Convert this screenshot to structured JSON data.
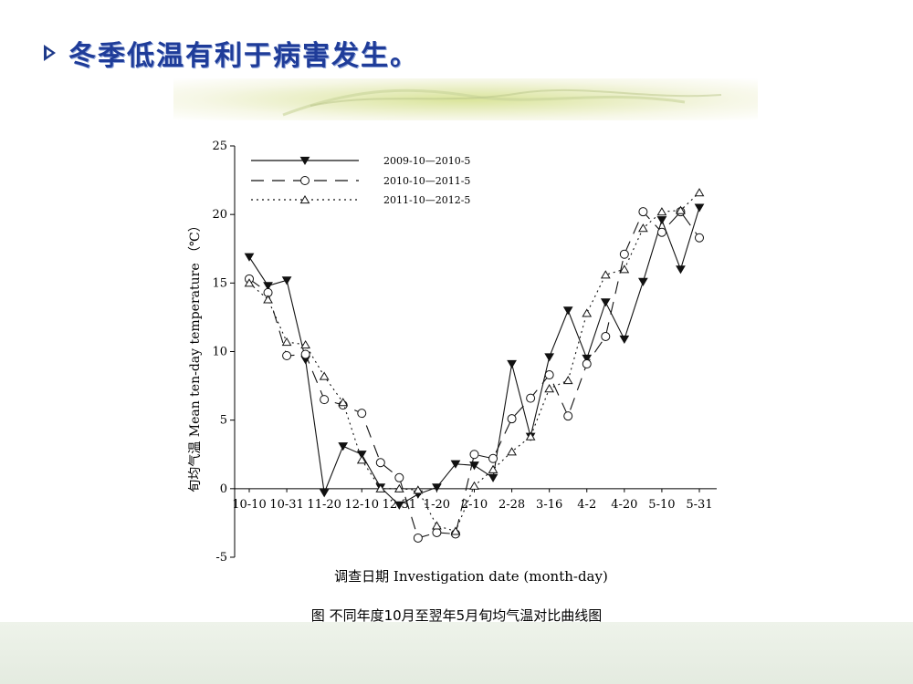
{
  "slide": {
    "title": "冬季低温有利于病害发生。",
    "caption": "图  不同年度10月至翌年5月旬均气温对比曲线图"
  },
  "colors": {
    "title": "#1f3c99",
    "series": "#111111"
  },
  "chart_data": {
    "type": "line",
    "title": "",
    "xlabel": "调查日期 Investigation date (month-day)",
    "ylabel": "旬均气温 Mean ten-day temperature （℃）",
    "ylim": [
      -5,
      25
    ],
    "y_ticks": [
      "-5",
      "0",
      "5",
      "10",
      "15",
      "20",
      "25"
    ],
    "x_tick_labels": [
      "10-10",
      "10-31",
      "11-20",
      "12-10",
      "12-31",
      "1-20",
      "2-10",
      "2-28",
      "3-16",
      "4-2",
      "4-20",
      "5-10",
      "5-31"
    ],
    "x_tick_index": [
      0,
      2,
      4,
      6,
      8,
      10,
      12,
      14,
      16,
      18,
      20,
      22,
      24
    ],
    "grid": false,
    "legend_position": "top-left",
    "series": [
      {
        "name": "2009-10—2010-5",
        "marker": "filled-triangle-down",
        "line": "solid",
        "values": [
          16.9,
          14.8,
          15.2,
          9.4,
          -0.3,
          3.1,
          2.5,
          0.1,
          -1.2,
          -0.4,
          0.1,
          1.8,
          1.7,
          0.8,
          9.1,
          3.8,
          9.6,
          13.0,
          9.5,
          13.6,
          10.9,
          15.1,
          19.6,
          16.0,
          20.5
        ]
      },
      {
        "name": "2010-10—2011-5",
        "marker": "open-circle",
        "line": "long-dash",
        "values": [
          15.3,
          14.3,
          9.7,
          9.8,
          6.5,
          6.1,
          5.5,
          1.9,
          0.8,
          -3.6,
          -3.2,
          -3.3,
          2.5,
          2.2,
          5.1,
          6.6,
          8.3,
          5.3,
          9.1,
          11.1,
          17.1,
          20.2,
          18.7,
          20.2,
          18.3
        ]
      },
      {
        "name": "2011-10—2012-5",
        "marker": "open-triangle-up",
        "line": "dotted",
        "values": [
          15.0,
          13.8,
          10.7,
          10.5,
          8.2,
          6.3,
          2.1,
          0.0,
          0.0,
          -0.1,
          -2.7,
          -3.1,
          0.2,
          1.4,
          2.7,
          3.8,
          7.3,
          7.9,
          12.8,
          15.6,
          16.0,
          19.0,
          20.2,
          20.3,
          21.6
        ]
      }
    ]
  }
}
